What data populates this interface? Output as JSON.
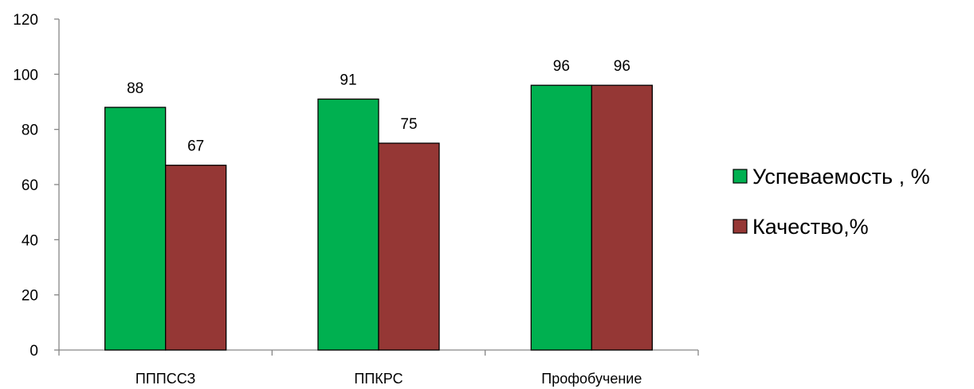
{
  "chart_data": {
    "type": "bar",
    "categories": [
      "ПППССЗ",
      "ППКРС",
      "Профобучение"
    ],
    "series": [
      {
        "name": "Успеваемость , %",
        "values": [
          88,
          91,
          96
        ],
        "color": "#00B050"
      },
      {
        "name": "Качество,%",
        "values": [
          67,
          75,
          96
        ],
        "color": "#953735"
      }
    ],
    "ylim": [
      0,
      120
    ],
    "yticks": [
      0,
      20,
      40,
      60,
      80,
      100,
      120
    ],
    "grid": false,
    "legend": "right",
    "data_labels": true,
    "title": "",
    "xlabel": "",
    "ylabel": ""
  }
}
